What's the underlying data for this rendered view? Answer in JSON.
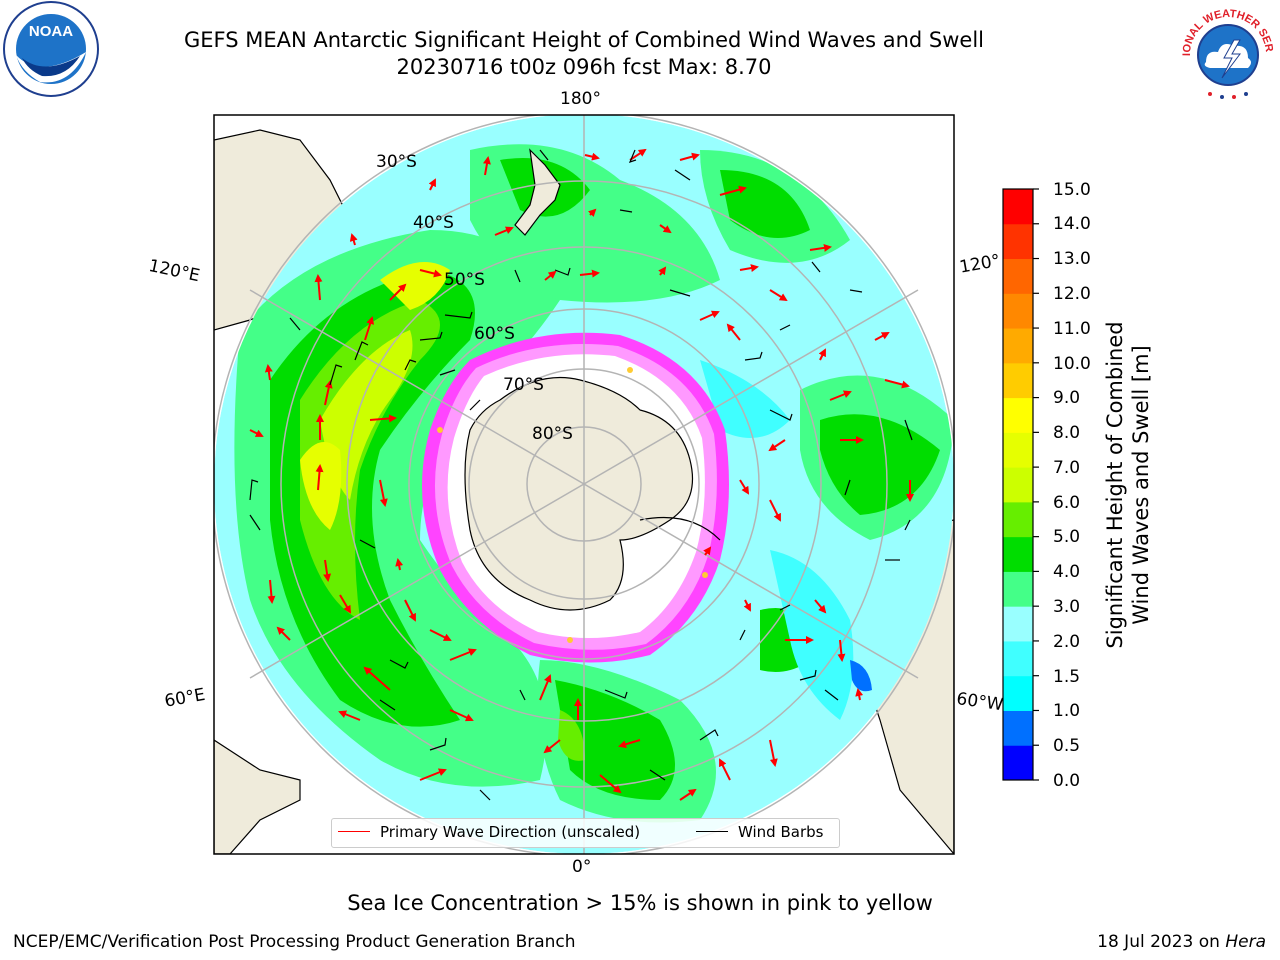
{
  "title": {
    "line1": "GEFS MEAN Antarctic Significant Height of Combined Wind Waves and Swell",
    "line2": "20230716 t00z 096h fcst   Max: 8.70"
  },
  "map": {
    "projection": "south-polar-stereographic",
    "longitude_labels": [
      "180°",
      "120°E",
      "120°",
      "60°E",
      "60°W",
      "0°"
    ],
    "latitude_labels": [
      "30°S",
      "40°S",
      "50°S",
      "60°S",
      "70°S",
      "80°S"
    ],
    "land_color": "#efebdb",
    "ice_edge_colors": [
      "#ff44ff",
      "#ff99ff",
      "#ffcc33"
    ]
  },
  "colorbar": {
    "label_line1": "Significant Height of Combined",
    "label_line2": "Wind Waves and Swell [m]",
    "ticks": [
      "15.0",
      "14.0",
      "13.0",
      "12.0",
      "11.0",
      "10.0",
      "9.0",
      "8.0",
      "7.0",
      "6.0",
      "5.0",
      "4.0",
      "3.0",
      "2.0",
      "1.5",
      "1.0",
      "0.5",
      "0.0"
    ],
    "level_colors": [
      "#0000ff",
      "#0070ff",
      "#00ffff",
      "#40ffff",
      "#99ffff",
      "#44ff88",
      "#00dd00",
      "#66ee00",
      "#ccff00",
      "#e6ff00",
      "#ffff00",
      "#ffcc00",
      "#ffaa00",
      "#ff8800",
      "#ff6600",
      "#ff3300",
      "#ff0000"
    ]
  },
  "legend": {
    "primary_wave": "Primary Wave Direction (unscaled)",
    "wind_barbs": "Wind Barbs",
    "primary_wave_color": "#ff0000",
    "wind_barbs_color": "#000000"
  },
  "note": "Sea Ice Concentration > 15% is shown in pink to yellow",
  "footer": {
    "credit": "NCEP/EMC/Verification Post Processing Product Generation Branch",
    "date_prefix": "18 Jul 2023 on ",
    "machine": "Hera"
  },
  "logos": {
    "noaa_text": "NOAA",
    "nws_text": "NATIONAL WEATHER SERVICE"
  }
}
